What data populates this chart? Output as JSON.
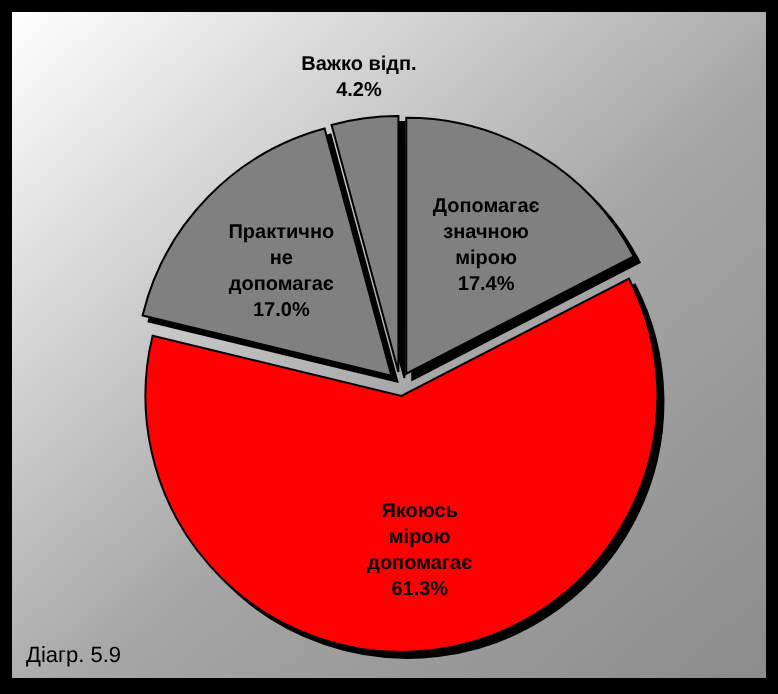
{
  "chart_data": {
    "type": "pie",
    "categories": [
      "Допомагає значною мірою",
      "Якоюсь мірою допомагає",
      "Практично не допомагає",
      "Важко відп."
    ],
    "values": [
      17.4,
      61.3,
      17.0,
      4.2
    ],
    "value_labels": [
      "17.4%",
      "61.3%",
      "17.0%",
      "4.2%"
    ],
    "colors": [
      "#808080",
      "#ff0000",
      "#808080",
      "#808080"
    ],
    "annotations": [
      "Діагр. 5.9"
    ]
  }
}
